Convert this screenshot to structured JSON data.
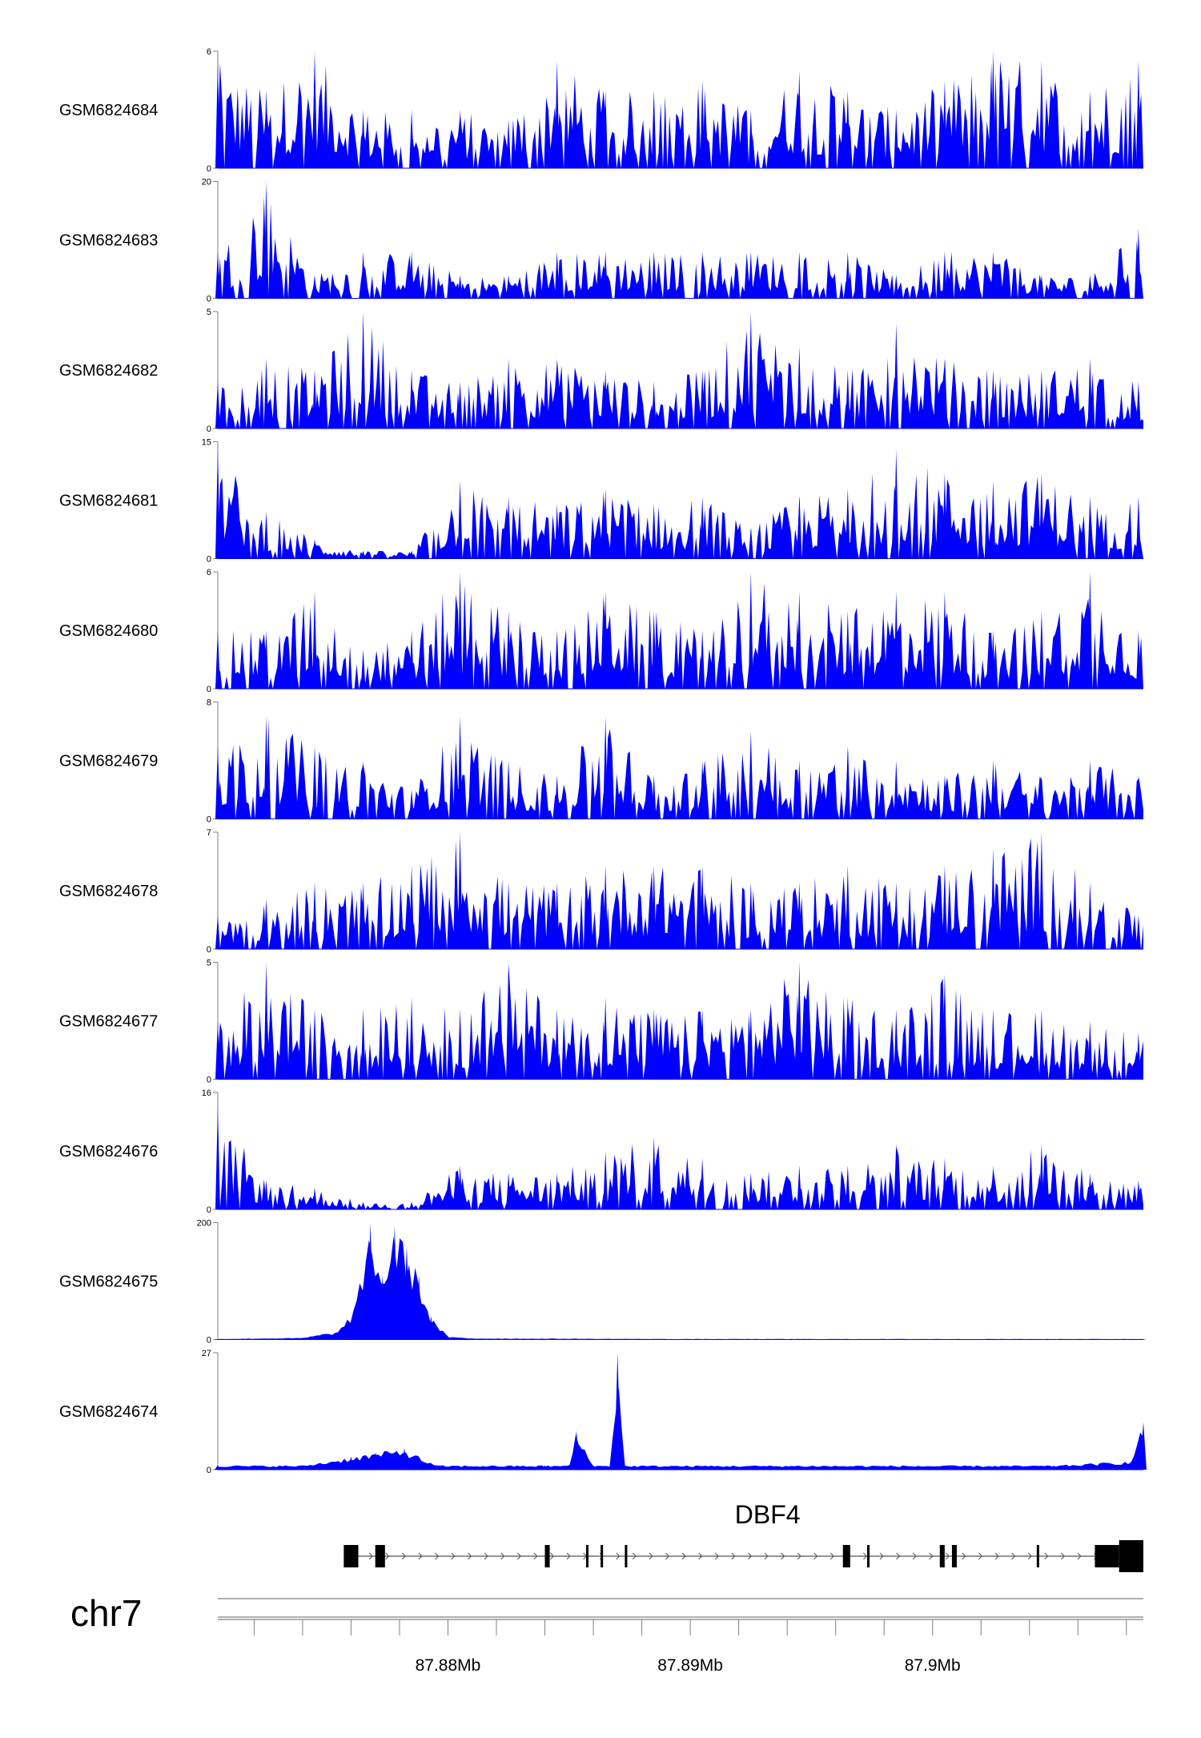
{
  "colors": {
    "signal": "#0000ff",
    "axis": "#808080",
    "text": "#000000",
    "gene": "#000000"
  },
  "chart_data": {
    "type": "area",
    "x_unit": "Mb",
    "xlim": [
      87.8705,
      87.9087
    ],
    "x_ticks": [
      87.88,
      87.89,
      87.9
    ],
    "x_tick_labels": [
      "87.88Mb",
      "87.89Mb",
      "87.9Mb"
    ],
    "chromosome": "chr7",
    "tracks": [
      {
        "name": "GSM6824684",
        "ymax": 6,
        "ymax_label": "6",
        "ymin_label": "0",
        "x": [
          87.8705,
          87.8725,
          87.8745,
          87.8765,
          87.8785,
          87.8805,
          87.8825,
          87.8845,
          87.8865,
          87.8885,
          87.8905,
          87.8925,
          87.8945,
          87.8965,
          87.8985,
          87.9005,
          87.9025,
          87.9045,
          87.9065,
          87.9085
        ],
        "values": [
          5.5,
          4,
          6,
          3,
          3,
          3,
          2.5,
          5.5,
          4,
          4,
          4.5,
          3,
          5,
          4,
          3,
          4.5,
          6,
          5.5,
          4,
          5.5
        ]
      },
      {
        "name": "GSM6824683",
        "ymax": 20,
        "ymax_label": "20",
        "ymin_label": "0",
        "x": [
          87.8705,
          87.8725,
          87.8745,
          87.8765,
          87.8785,
          87.8805,
          87.8825,
          87.8845,
          87.8865,
          87.8885,
          87.8905,
          87.8925,
          87.8945,
          87.8965,
          87.8985,
          87.9005,
          87.9025,
          87.9045,
          87.9065,
          87.9085
        ],
        "values": [
          8,
          20,
          4,
          8,
          8,
          4,
          4,
          8,
          8,
          8,
          8,
          8,
          8,
          8,
          4,
          8,
          8,
          4,
          4,
          12
        ]
      },
      {
        "name": "GSM6824682",
        "ymax": 5,
        "ymax_label": "5",
        "ymin_label": "0",
        "x": [
          87.8705,
          87.8725,
          87.8745,
          87.8765,
          87.8785,
          87.8805,
          87.8825,
          87.8845,
          87.8865,
          87.8885,
          87.8905,
          87.8925,
          87.8945,
          87.8965,
          87.8985,
          87.9005,
          87.9025,
          87.9045,
          87.9065,
          87.9085
        ],
        "values": [
          2,
          3,
          2.5,
          5,
          2.5,
          2,
          3,
          3,
          2.5,
          2,
          2.5,
          5,
          3.5,
          2.5,
          4.5,
          3,
          2.5,
          2.5,
          3,
          2
        ]
      },
      {
        "name": "GSM6824681",
        "ymax": 15,
        "ymax_label": "15",
        "ymin_label": "0",
        "x": [
          87.8705,
          87.8725,
          87.8745,
          87.8765,
          87.8785,
          87.8805,
          87.8825,
          87.8845,
          87.8865,
          87.8885,
          87.8905,
          87.8925,
          87.8945,
          87.8965,
          87.8985,
          87.9005,
          87.9025,
          87.9045,
          87.9065,
          87.9085
        ],
        "values": [
          14,
          6,
          2.5,
          1,
          1,
          10,
          8,
          7,
          9,
          7,
          8,
          4,
          8,
          9,
          14,
          11,
          10,
          11,
          8,
          8
        ]
      },
      {
        "name": "GSM6824680",
        "ymax": 6,
        "ymax_label": "6",
        "ymin_label": "0",
        "x": [
          87.8705,
          87.8725,
          87.8745,
          87.8765,
          87.8785,
          87.8805,
          87.8825,
          87.8845,
          87.8865,
          87.8885,
          87.8905,
          87.8925,
          87.8945,
          87.8965,
          87.8985,
          87.9005,
          87.9025,
          87.9045,
          87.9065,
          87.9085
        ],
        "values": [
          3,
          3,
          5,
          2,
          3,
          6,
          4,
          3,
          5,
          4,
          3,
          6,
          5,
          4,
          5,
          5,
          3,
          4,
          6,
          3
        ]
      },
      {
        "name": "GSM6824679",
        "ymax": 8,
        "ymax_label": "8",
        "ymin_label": "0",
        "x": [
          87.8705,
          87.8725,
          87.8745,
          87.8765,
          87.8785,
          87.8805,
          87.8825,
          87.8845,
          87.8865,
          87.8885,
          87.8905,
          87.8925,
          87.8945,
          87.8965,
          87.8985,
          87.9005,
          87.9025,
          87.9045,
          87.9065,
          87.9085
        ],
        "values": [
          5,
          7,
          5,
          4,
          2,
          7,
          4,
          3,
          7,
          3,
          4,
          6,
          4,
          5,
          4,
          3,
          4,
          3,
          4,
          3
        ]
      },
      {
        "name": "GSM6824678",
        "ymax": 7,
        "ymax_label": "7",
        "ymin_label": "0",
        "x": [
          87.8705,
          87.8725,
          87.8745,
          87.8765,
          87.8785,
          87.8805,
          87.8825,
          87.8845,
          87.8865,
          87.8885,
          87.8905,
          87.8925,
          87.8945,
          87.8965,
          87.8985,
          87.9005,
          87.9025,
          87.9045,
          87.9065,
          87.9085
        ],
        "values": [
          2,
          3,
          4,
          4,
          5,
          7,
          4,
          4,
          5,
          5,
          5,
          4,
          4,
          5,
          4,
          5,
          6,
          7,
          4,
          2
        ]
      },
      {
        "name": "GSM6824677",
        "ymax": 5,
        "ymax_label": "5",
        "ymin_label": "0",
        "x": [
          87.8705,
          87.8725,
          87.8745,
          87.8765,
          87.8785,
          87.8805,
          87.8825,
          87.8845,
          87.8865,
          87.8885,
          87.8905,
          87.8925,
          87.8945,
          87.8965,
          87.8985,
          87.9005,
          87.9025,
          87.9045,
          87.9065,
          87.9085
        ],
        "values": [
          2.5,
          5,
          3,
          3,
          3.5,
          3,
          5,
          3,
          3.5,
          3,
          3,
          3,
          5,
          3.5,
          3,
          4.5,
          3,
          3,
          2.5,
          2
        ]
      },
      {
        "name": "GSM6824676",
        "ymax": 16,
        "ymax_label": "16",
        "ymin_label": "0",
        "x": [
          87.8705,
          87.8725,
          87.8745,
          87.8765,
          87.8785,
          87.8805,
          87.8825,
          87.8845,
          87.8865,
          87.8885,
          87.8905,
          87.8925,
          87.8945,
          87.8965,
          87.8985,
          87.9005,
          87.9025,
          87.9045,
          87.9065,
          87.9085
        ],
        "values": [
          14,
          4,
          3,
          1,
          1,
          6,
          5,
          5,
          8,
          10,
          7,
          5,
          6,
          6,
          9,
          7,
          6,
          9,
          5,
          4
        ]
      },
      {
        "name": "GSM6824675",
        "ymax": 200,
        "ymax_label": "200",
        "ymin_label": "0",
        "x": [
          87.8705,
          87.874,
          87.8755,
          87.8762,
          87.8768,
          87.8773,
          87.8778,
          87.8783,
          87.8788,
          87.8793,
          87.88,
          87.881,
          87.89,
          87.9087
        ],
        "values": [
          1,
          3,
          15,
          60,
          200,
          110,
          195,
          160,
          110,
          40,
          5,
          2,
          1,
          1
        ]
      },
      {
        "name": "GSM6824674",
        "ymax": 27,
        "ymax_label": "27",
        "ymin_label": "0",
        "x": [
          87.8705,
          87.874,
          87.876,
          87.877,
          87.8782,
          87.8795,
          87.884,
          87.885,
          87.8853,
          87.886,
          87.8867,
          87.887,
          87.8873,
          87.888,
          87.895,
          87.905,
          87.9082,
          87.9087
        ],
        "values": [
          1,
          1,
          3,
          4,
          5,
          1,
          1,
          1,
          9,
          1,
          1,
          27,
          1,
          1,
          1,
          1,
          2,
          11
        ]
      }
    ],
    "gene": {
      "name": "DBF4",
      "strand": "+",
      "start": 87.8757,
      "end": 87.9087,
      "exons": [
        {
          "start": 87.8757,
          "end": 87.8763,
          "coding": true
        },
        {
          "start": 87.877,
          "end": 87.8774,
          "coding": true
        },
        {
          "start": 87.884,
          "end": 87.8842,
          "coding": true
        },
        {
          "start": 87.8857,
          "end": 87.8858,
          "coding": true
        },
        {
          "start": 87.8863,
          "end": 87.8864,
          "coding": true
        },
        {
          "start": 87.8873,
          "end": 87.8874,
          "coding": true
        },
        {
          "start": 87.8963,
          "end": 87.8966,
          "coding": true
        },
        {
          "start": 87.8973,
          "end": 87.8974,
          "coding": true
        },
        {
          "start": 87.9003,
          "end": 87.9005,
          "coding": true
        },
        {
          "start": 87.9008,
          "end": 87.901,
          "coding": true
        },
        {
          "start": 87.9043,
          "end": 87.9044,
          "coding": true
        },
        {
          "start": 87.9067,
          "end": 87.9077,
          "coding": true
        },
        {
          "start": 87.9077,
          "end": 87.9087,
          "coding": false
        }
      ]
    }
  }
}
